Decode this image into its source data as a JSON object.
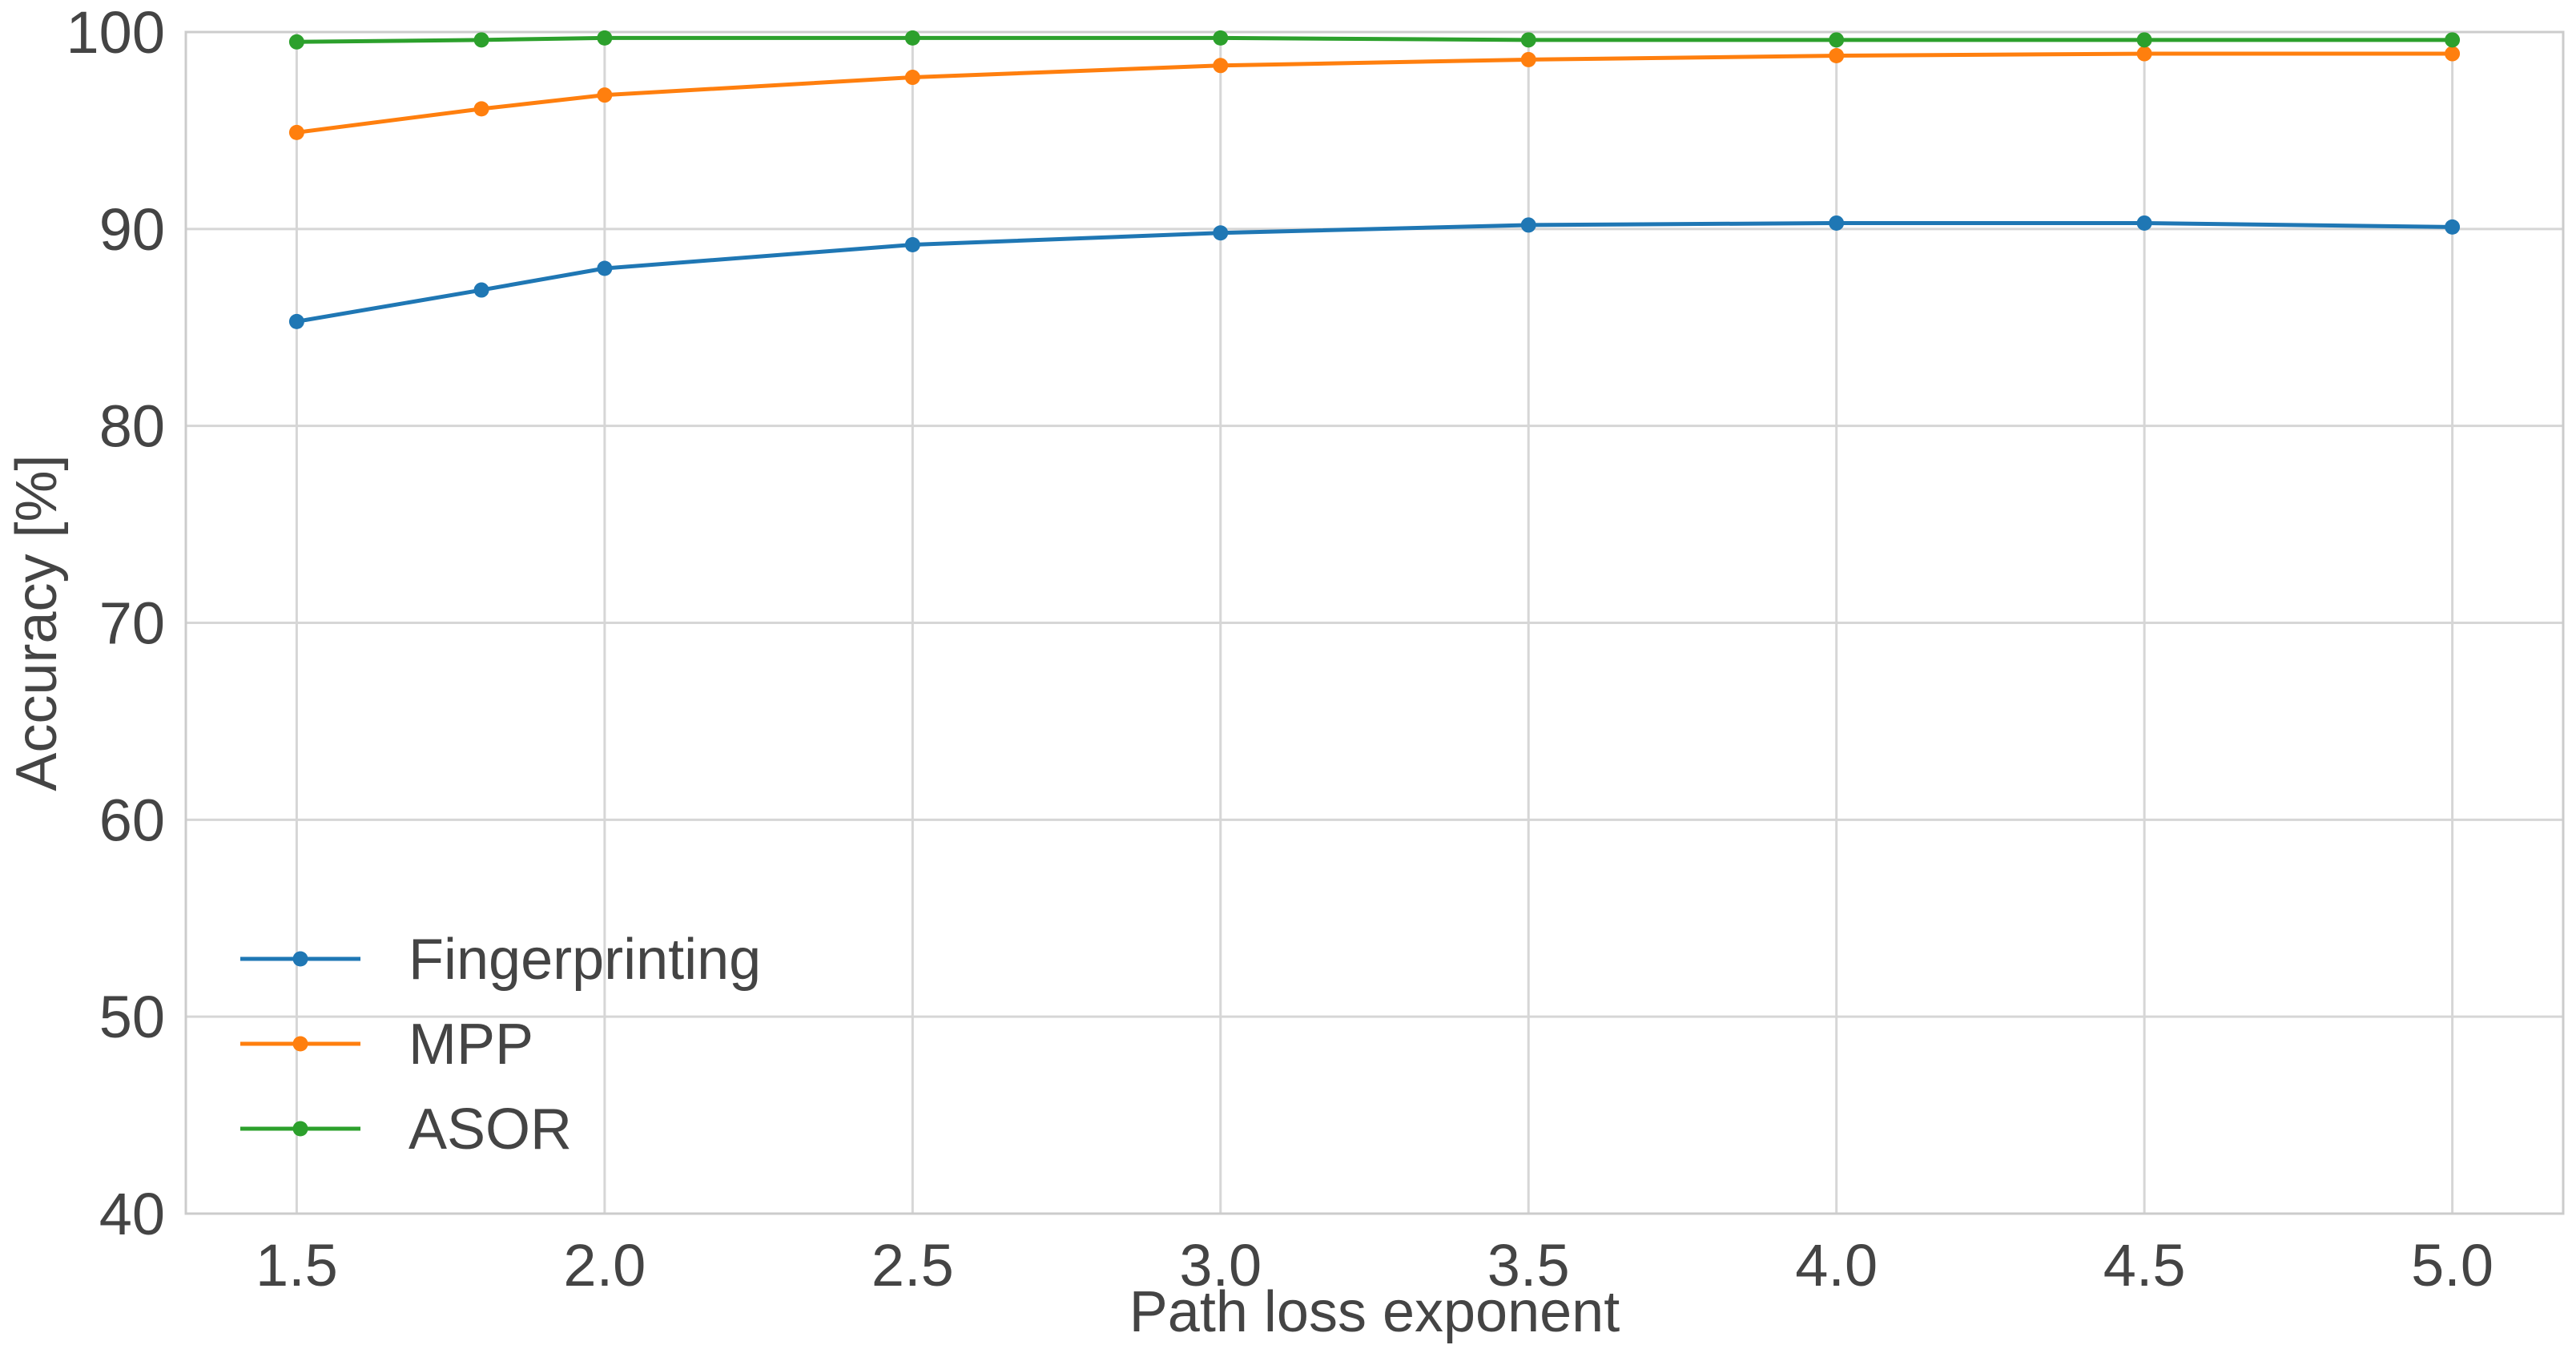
{
  "chart_data": {
    "type": "line",
    "title": "",
    "xlabel": "Path loss exponent",
    "ylabel": "Accuracy [%]",
    "xlim": [
      1.32,
      5.18
    ],
    "ylim": [
      40,
      100
    ],
    "xticks": [
      "1.5",
      "2.0",
      "2.5",
      "3.0",
      "3.5",
      "4.0",
      "4.5",
      "5.0"
    ],
    "yticks": [
      "40",
      "50",
      "60",
      "70",
      "80",
      "90",
      "100"
    ],
    "grid": true,
    "legend_position": "lower-left",
    "x": [
      1.5,
      1.8,
      2.0,
      2.5,
      3.0,
      3.5,
      4.0,
      4.5,
      5.0
    ],
    "series": [
      {
        "name": "Fingerprinting",
        "color": "#1f77b4",
        "values": [
          85.3,
          86.9,
          88.0,
          89.2,
          89.8,
          90.2,
          90.3,
          90.3,
          90.1
        ]
      },
      {
        "name": "MPP",
        "color": "#ff7f0e",
        "values": [
          94.9,
          96.1,
          96.8,
          97.7,
          98.3,
          98.6,
          98.8,
          98.9,
          98.9
        ]
      },
      {
        "name": "ASOR",
        "color": "#2ca02c",
        "values": [
          99.5,
          99.6,
          99.7,
          99.7,
          99.7,
          99.6,
          99.6,
          99.6,
          99.6
        ]
      }
    ]
  }
}
